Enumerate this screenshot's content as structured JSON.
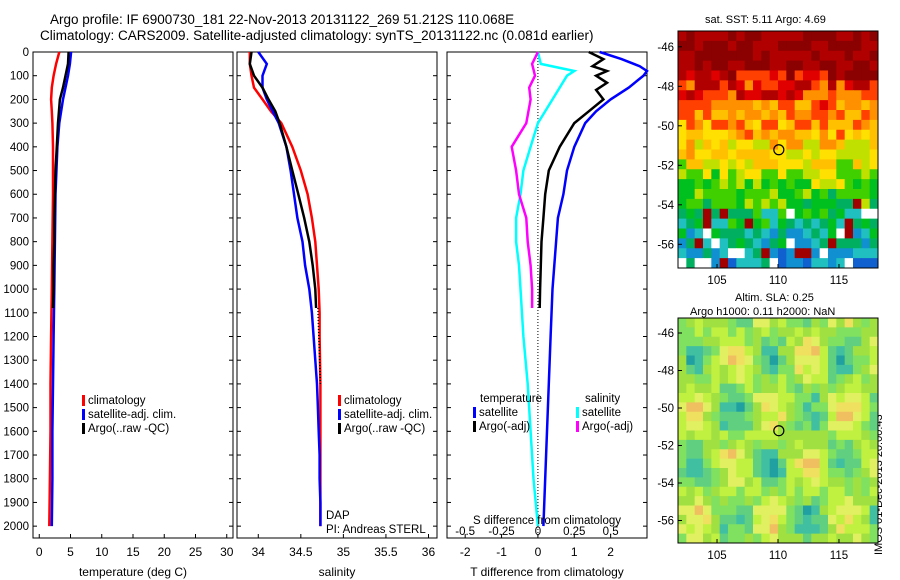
{
  "header": {
    "line1": "Argo profile: IF 6900730_181 22-Nov-2013 20131122_269 51.212S 110.068E",
    "line2": "Climatology: CARS2009. Satellite-adjusted climatology: synTS_20131122.nc (0.081d earlier)"
  },
  "colors": {
    "climatology": "#ff0000",
    "satellite": "#0000ff",
    "argo": "#000000",
    "satellite_s": "#00ffff",
    "argo_s": "#ff00ff"
  },
  "chart_data": [
    {
      "type": "line",
      "panel": "temperature",
      "xlabel": "temperature (deg C)",
      "xlim": [
        -1,
        31
      ],
      "xticks": [
        0,
        5,
        10,
        15,
        20,
        25,
        30
      ],
      "ylim": [
        2050,
        0
      ],
      "yticks": [
        0,
        100,
        200,
        300,
        400,
        500,
        600,
        700,
        800,
        900,
        1000,
        1100,
        1200,
        1300,
        1400,
        1500,
        1600,
        1700,
        1800,
        1900,
        2000
      ],
      "legend": [
        "climatology",
        "satellite-adj. clim.",
        "Argo(..raw -QC)"
      ],
      "series": [
        {
          "name": "climatology",
          "color": "#ff0000",
          "depth": [
            0,
            50,
            100,
            150,
            200,
            250,
            300,
            400,
            600,
            800,
            1000,
            1200,
            1400,
            1600,
            1800,
            2000
          ],
          "values": [
            3.2,
            2.7,
            2.3,
            2.0,
            1.9,
            2.0,
            2.1,
            2.2,
            2.2,
            2.1,
            2.0,
            1.9,
            1.8,
            1.8,
            1.7,
            1.6
          ]
        },
        {
          "name": "satellite-adj. clim.",
          "color": "#0000ff",
          "depth": [
            0,
            50,
            100,
            150,
            200,
            300,
            400,
            600,
            800,
            1000,
            1200,
            1400,
            1600,
            1800,
            2000
          ],
          "values": [
            5.1,
            4.9,
            4.6,
            4.2,
            3.8,
            3.2,
            2.9,
            2.6,
            2.5,
            2.4,
            2.3,
            2.2,
            2.1,
            2.1,
            2.0
          ]
        },
        {
          "name": "Argo(..raw -QC)",
          "color": "#000000",
          "depth": [
            0,
            50,
            100,
            150,
            200,
            300,
            400,
            500,
            600,
            700,
            800,
            900,
            1000,
            1080
          ],
          "values": [
            4.7,
            4.6,
            4.2,
            3.8,
            3.3,
            3.0,
            2.8,
            2.6,
            2.5,
            2.4,
            2.4,
            2.3,
            2.3,
            2.2
          ]
        }
      ]
    },
    {
      "type": "line",
      "panel": "salinity",
      "xlabel": "salinity",
      "xlim": [
        33.75,
        36.1
      ],
      "xticks": [
        34,
        34.5,
        35,
        35.5,
        36
      ],
      "ylim": [
        2050,
        0
      ],
      "legend": [
        "climatology",
        "satellite-adj. clim.",
        "Argo(..raw -QC)"
      ],
      "annotations": [
        "DAP",
        "PI: Andreas STERL"
      ],
      "series": [
        {
          "name": "climatology",
          "color": "#ff0000",
          "depth": [
            0,
            50,
            100,
            150,
            200,
            250,
            300,
            400,
            500,
            600,
            700,
            800,
            900,
            1000,
            1100,
            1200,
            1400,
            1600,
            1800,
            2000
          ],
          "values": [
            33.9,
            33.9,
            33.92,
            33.95,
            34.05,
            34.15,
            34.27,
            34.4,
            34.5,
            34.58,
            34.63,
            34.67,
            34.69,
            34.71,
            34.72,
            34.72,
            34.73,
            34.73,
            34.73,
            34.73
          ]
        },
        {
          "name": "satellite-adj. clim.",
          "color": "#0000ff",
          "depth": [
            0,
            50,
            100,
            150,
            200,
            250,
            300,
            400,
            500,
            600,
            700,
            800,
            900,
            1000,
            1100,
            1200,
            1300,
            1400,
            1500,
            1600,
            1700,
            1800,
            1900,
            2000
          ],
          "values": [
            34.0,
            34.1,
            34.05,
            34.05,
            34.1,
            34.17,
            34.24,
            34.33,
            34.38,
            34.42,
            34.46,
            34.52,
            34.55,
            34.6,
            34.63,
            34.65,
            34.67,
            34.69,
            34.7,
            34.71,
            34.72,
            34.72,
            34.73,
            34.73
          ]
        },
        {
          "name": "Argo(..raw -QC)",
          "color": "#000000",
          "depth": [
            0,
            50,
            100,
            150,
            200,
            250,
            300,
            400,
            500,
            600,
            700,
            800,
            900,
            1000,
            1080
          ],
          "values": [
            33.92,
            33.9,
            33.95,
            34.05,
            34.12,
            34.2,
            34.25,
            34.33,
            34.4,
            34.47,
            34.54,
            34.6,
            34.64,
            34.67,
            34.68
          ]
        }
      ]
    },
    {
      "type": "line",
      "panel": "difference",
      "xlabel": "T difference from climatology",
      "xlabel_top": "S difference from climatology",
      "xlim": [
        -2.5,
        3
      ],
      "xticks": [
        -2,
        -1,
        0,
        1,
        2
      ],
      "s_ticks": [
        -0.5,
        -0.25,
        0,
        0.25,
        0.5
      ],
      "ylim": [
        2050,
        0
      ],
      "legend_temperature": [
        "temperature",
        "satellite",
        "Argo(-adj)"
      ],
      "legend_salinity": [
        "salinity",
        "satellite",
        "Argo(-adj)"
      ],
      "series": [
        {
          "name": "satellite",
          "color": "#0000ff",
          "depth": [
            0,
            30,
            60,
            80,
            100,
            150,
            200,
            250,
            300,
            400,
            500,
            600,
            700,
            800,
            900,
            1000,
            1200,
            1400,
            1600,
            1800,
            2000
          ],
          "values": [
            1.7,
            2.3,
            2.8,
            3.0,
            2.9,
            2.5,
            2.0,
            1.6,
            1.3,
            1.0,
            0.8,
            0.7,
            0.55,
            0.5,
            0.45,
            0.4,
            0.35,
            0.3,
            0.25,
            0.2,
            0.15
          ]
        },
        {
          "name": "Argo(-adj)",
          "color": "#000000",
          "depth": [
            0,
            30,
            60,
            80,
            100,
            130,
            160,
            200,
            250,
            300,
            400,
            500,
            600,
            700,
            800,
            900,
            1000,
            1080
          ],
          "values": [
            1.4,
            1.8,
            1.5,
            1.9,
            1.6,
            1.9,
            1.6,
            1.8,
            1.4,
            1.0,
            0.6,
            0.3,
            0.2,
            0.15,
            0.1,
            0.08,
            0.06,
            0.05
          ]
        },
        {
          "name": "satellite (S)",
          "color": "#00ffff",
          "depth": [
            0,
            50,
            80,
            100,
            150,
            200,
            300,
            400,
            500,
            600,
            700,
            800,
            900,
            1000,
            1200,
            1400,
            1600,
            1800,
            2000
          ],
          "values": [
            0.0,
            0.02,
            0.25,
            0.2,
            0.15,
            0.1,
            0.0,
            -0.05,
            -0.1,
            -0.12,
            -0.15,
            -0.15,
            -0.13,
            -0.12,
            -0.1,
            -0.07,
            -0.05,
            -0.03,
            0.0
          ]
        },
        {
          "name": "Argo(-adj) (S)",
          "color": "#ff00ff",
          "depth": [
            0,
            50,
            100,
            150,
            200,
            300,
            400,
            500,
            600,
            700,
            800,
            900,
            1000,
            1080
          ],
          "values": [
            0.0,
            -0.04,
            -0.02,
            -0.06,
            -0.05,
            -0.08,
            -0.18,
            -0.15,
            -0.13,
            -0.08,
            -0.07,
            -0.05,
            -0.04,
            -0.04
          ]
        }
      ]
    }
  ],
  "maps": {
    "sst_caption": "sat. SST: 5.11  Argo: 4.69",
    "sla_caption_1": "Altim. SLA: 0.25",
    "sla_caption_2": "Argo h1000: 0.11 h2000: NaN",
    "lat_ticks": [
      "-46",
      "-48",
      "-50",
      "-52",
      "-54",
      "-56"
    ],
    "lon_ticks": [
      "105",
      "110",
      "115"
    ],
    "lat_values": [
      -46,
      -48,
      -50,
      -52,
      -54,
      -56
    ],
    "lon_values": [
      105,
      110,
      115
    ],
    "lat_range": [
      -57.2,
      -45.2
    ],
    "lon_range": [
      101.8,
      118.2
    ],
    "argo_lat": -51.212,
    "argo_lon": 110.068
  },
  "footer": {
    "imos_stamp": "IMOS 01-Dec-2013 20:00:43"
  }
}
